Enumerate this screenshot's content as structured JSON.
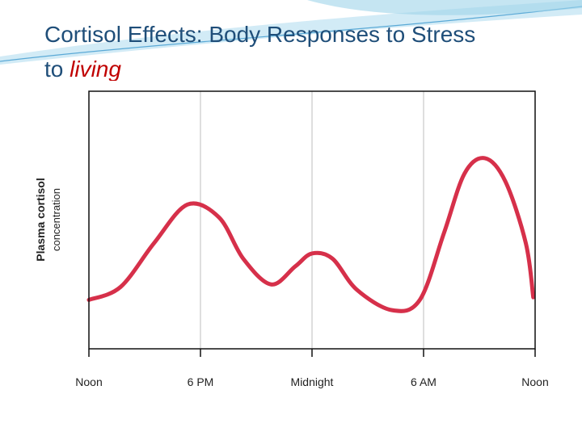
{
  "title": {
    "line1": "Cortisol Effects: Body Responses to Stress",
    "line2": "to",
    "emphasis": "living"
  },
  "chart_data": {
    "type": "line",
    "y_label": [
      "Plasma cortisol",
      "concentration"
    ],
    "x": [
      0,
      1.7,
      3.5,
      5.3,
      7,
      8.3,
      9.8,
      11.1,
      12,
      13.1,
      14.4,
      16.3,
      17.8,
      19.1,
      20.2,
      21.3,
      22.4,
      23.5,
      23.9
    ],
    "series": [
      {
        "color": "#d6304a",
        "values": [
          19,
          24,
          41,
          56,
          51,
          35,
          25,
          32,
          37,
          35,
          23,
          15,
          19,
          45,
          68,
          74,
          65,
          41,
          20
        ]
      }
    ],
    "xlim": [
      0,
      24
    ],
    "xticks": [
      {
        "value": 0,
        "label": "Noon"
      },
      {
        "value": 6,
        "label": "6 PM"
      },
      {
        "value": 12,
        "label": "Midnight"
      },
      {
        "value": 18,
        "label": "6 AM"
      },
      {
        "value": 24,
        "label": "Noon"
      }
    ],
    "ylim": [
      0,
      100
    ],
    "grid": true
  }
}
